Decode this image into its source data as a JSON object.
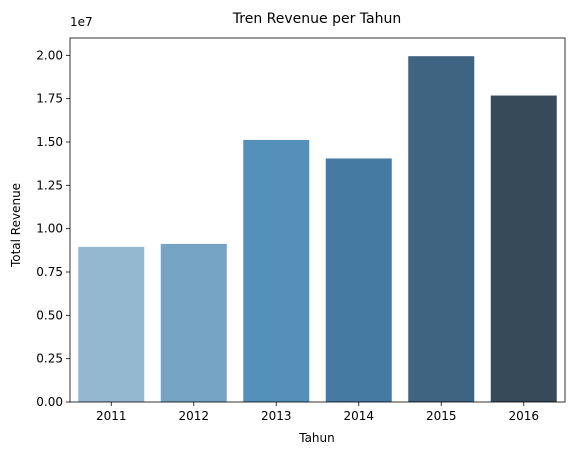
{
  "chart_data": {
    "type": "bar",
    "title": "Tren Revenue per Tahun",
    "xlabel": "Tahun",
    "ylabel": "Total Revenue",
    "y_offset_label": "1e7",
    "categories": [
      "2011",
      "2012",
      "2013",
      "2014",
      "2015",
      "2016"
    ],
    "values": [
      8950000,
      9120000,
      15120000,
      14050000,
      19950000,
      17680000
    ],
    "colors": [
      "#95b8d1",
      "#75a4c4",
      "#5490b9",
      "#457ba2",
      "#3f6482",
      "#374a59"
    ],
    "ylim": [
      0,
      21000000
    ],
    "y_ticks": [
      0,
      2500000,
      5000000,
      7500000,
      10000000,
      12500000,
      15000000,
      17500000,
      20000000
    ],
    "y_tick_labels": [
      "0.00",
      "0.25",
      "0.50",
      "0.75",
      "1.00",
      "1.25",
      "1.50",
      "1.75",
      "2.00"
    ],
    "grid": false,
    "legend": "none"
  }
}
